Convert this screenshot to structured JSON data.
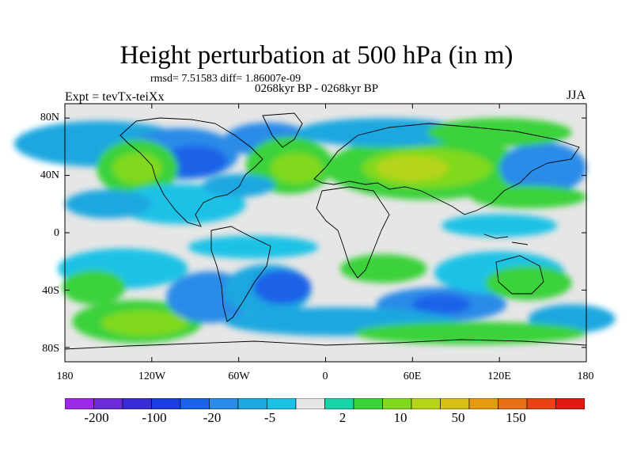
{
  "title": "Height perturbation at 500 hPa (in m)",
  "stats": "rmsd= 7.51583 diff= 1.86007e-09",
  "subtitle": "0268kyr BP - 0268kyr BP",
  "experiment": "Expt = tevTx-teiXx",
  "season": "JJA",
  "lat_labels": [
    "80N",
    "40N",
    "0",
    "40S",
    "80S"
  ],
  "lon_labels": [
    "180",
    "120W",
    "60W",
    "0",
    "60E",
    "120E",
    "180"
  ],
  "colorbar": {
    "colors": [
      "#9b29e6",
      "#6c2bd9",
      "#3a2bd6",
      "#1c3ee0",
      "#1a62e8",
      "#2a8be8",
      "#1fa7e0",
      "#1bc2e6",
      "#e6e6e6",
      "#19d4a6",
      "#3bd23a",
      "#80d91f",
      "#b6d41b",
      "#d6bf18",
      "#e69a12",
      "#e87015",
      "#e84413",
      "#e01a13"
    ],
    "labels": [
      "-200",
      "-100",
      "-20",
      "-5",
      "2",
      "10",
      "50",
      "150"
    ]
  },
  "field": {
    "blobs": [
      {
        "lon": -155,
        "lat": 62,
        "rx": 60,
        "ry": 16,
        "c": "#1fa7e0"
      },
      {
        "lon": -100,
        "lat": 55,
        "rx": 40,
        "ry": 18,
        "c": "#2a8be8"
      },
      {
        "lon": -90,
        "lat": 50,
        "rx": 22,
        "ry": 11,
        "c": "#1a62e8"
      },
      {
        "lon": -130,
        "lat": 45,
        "rx": 28,
        "ry": 20,
        "c": "#3bd23a"
      },
      {
        "lon": -130,
        "lat": 45,
        "rx": 17,
        "ry": 11,
        "c": "#80d91f"
      },
      {
        "lon": -100,
        "lat": 20,
        "rx": 45,
        "ry": 14,
        "c": "#1bc2e6"
      },
      {
        "lon": -40,
        "lat": 65,
        "rx": 30,
        "ry": 12,
        "c": "#2a8be8"
      },
      {
        "lon": -25,
        "lat": 47,
        "rx": 30,
        "ry": 20,
        "c": "#3bd23a"
      },
      {
        "lon": -20,
        "lat": 45,
        "rx": 18,
        "ry": 11,
        "c": "#80d91f"
      },
      {
        "lon": -60,
        "lat": 33,
        "rx": 25,
        "ry": 8,
        "c": "#1fa7e0"
      },
      {
        "lon": 70,
        "lat": 45,
        "rx": 70,
        "ry": 22,
        "c": "#3bd23a"
      },
      {
        "lon": 70,
        "lat": 45,
        "rx": 45,
        "ry": 14,
        "c": "#80d91f"
      },
      {
        "lon": 60,
        "lat": 45,
        "rx": 25,
        "ry": 9,
        "c": "#b6d41b"
      },
      {
        "lon": 40,
        "lat": 70,
        "rx": 60,
        "ry": 10,
        "c": "#1fa7e0"
      },
      {
        "lon": 150,
        "lat": 45,
        "rx": 30,
        "ry": 18,
        "c": "#2a8be8"
      },
      {
        "lon": 120,
        "lat": 70,
        "rx": 50,
        "ry": 10,
        "c": "#3bd23a"
      },
      {
        "lon": 140,
        "lat": 25,
        "rx": 40,
        "ry": 8,
        "c": "#3bd23a"
      },
      {
        "lon": -150,
        "lat": 20,
        "rx": 30,
        "ry": 10,
        "c": "#1fa7e0"
      },
      {
        "lon": -50,
        "lat": -10,
        "rx": 45,
        "ry": 8,
        "c": "#1bc2e6"
      },
      {
        "lon": -140,
        "lat": -25,
        "rx": 45,
        "ry": 14,
        "c": "#1bc2e6"
      },
      {
        "lon": -160,
        "lat": -38,
        "rx": 22,
        "ry": 12,
        "c": "#3bd23a"
      },
      {
        "lon": -130,
        "lat": -62,
        "rx": 45,
        "ry": 15,
        "c": "#3bd23a"
      },
      {
        "lon": -125,
        "lat": -63,
        "rx": 30,
        "ry": 9,
        "c": "#80d91f"
      },
      {
        "lon": -80,
        "lat": -45,
        "rx": 30,
        "ry": 18,
        "c": "#2a8be8"
      },
      {
        "lon": -40,
        "lat": -40,
        "rx": 30,
        "ry": 18,
        "c": "#1fa7e0"
      },
      {
        "lon": -30,
        "lat": -38,
        "rx": 20,
        "ry": 12,
        "c": "#1a62e8"
      },
      {
        "lon": 40,
        "lat": -25,
        "rx": 30,
        "ry": 10,
        "c": "#3bd23a"
      },
      {
        "lon": 80,
        "lat": -50,
        "rx": 45,
        "ry": 12,
        "c": "#2a8be8"
      },
      {
        "lon": 80,
        "lat": -50,
        "rx": 20,
        "ry": 7,
        "c": "#1a62e8"
      },
      {
        "lon": 120,
        "lat": -28,
        "rx": 45,
        "ry": 15,
        "c": "#1bc2e6"
      },
      {
        "lon": 140,
        "lat": -35,
        "rx": 30,
        "ry": 12,
        "c": "#3bd23a"
      },
      {
        "lon": 170,
        "lat": -60,
        "rx": 30,
        "ry": 10,
        "c": "#1fa7e0"
      },
      {
        "lon": 10,
        "lat": -62,
        "rx": 80,
        "ry": 10,
        "c": "#1fa7e0"
      },
      {
        "lon": 100,
        "lat": -70,
        "rx": 80,
        "ry": 8,
        "c": "#3bd23a"
      },
      {
        "lon": 120,
        "lat": 5,
        "rx": 40,
        "ry": 8,
        "c": "#1bc2e6"
      }
    ]
  }
}
